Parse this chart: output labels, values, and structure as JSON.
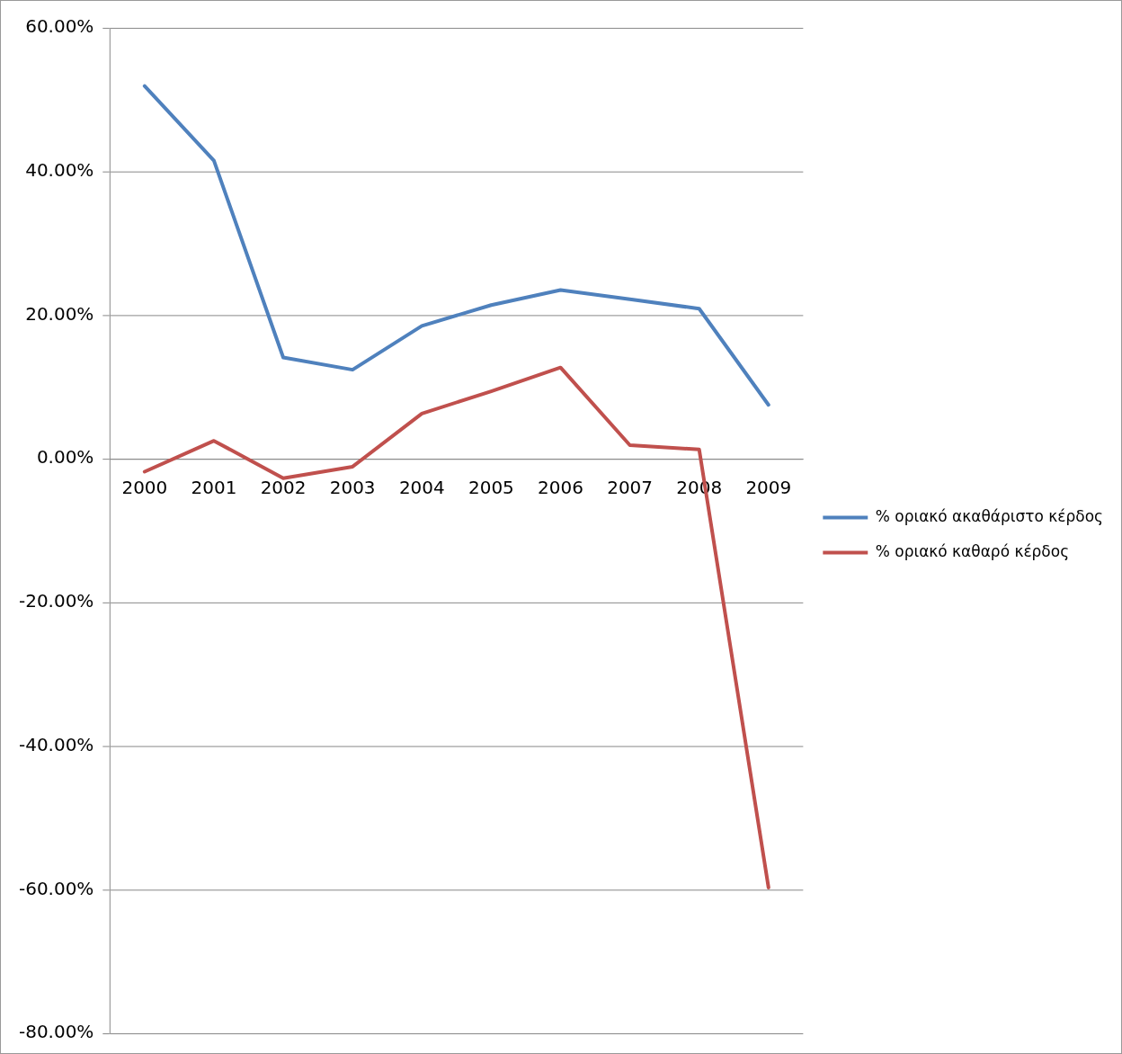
{
  "chart_data": {
    "type": "line",
    "categories": [
      "2000",
      "2001",
      "2002",
      "2003",
      "2004",
      "2005",
      "2006",
      "2007",
      "2008",
      "2009"
    ],
    "series": [
      {
        "name": "% οριακό ακαθάριστο κέρδος",
        "color": "#4f81bd",
        "values": [
          51.9,
          41.5,
          14.1,
          12.4,
          18.5,
          21.4,
          23.5,
          22.2,
          20.9,
          7.5
        ]
      },
      {
        "name": "% οριακό καθαρό κέρδος",
        "color": "#c0504d",
        "values": [
          -1.8,
          2.5,
          -2.7,
          -1.1,
          6.3,
          9.4,
          12.7,
          1.9,
          1.3,
          -59.7
        ]
      }
    ],
    "ylim": [
      -80,
      60
    ],
    "yticks": [
      {
        "value": -80,
        "label": "-80.00%"
      },
      {
        "value": -60,
        "label": "-60.00%"
      },
      {
        "value": -40,
        "label": "-40.00%"
      },
      {
        "value": -20,
        "label": "-20.00%"
      },
      {
        "value": 0,
        "label": "0.00%"
      },
      {
        "value": 20,
        "label": "20.00%"
      },
      {
        "value": 40,
        "label": "40.00%"
      },
      {
        "value": 60,
        "label": "60.00%"
      }
    ],
    "grid": "y",
    "legend": "right",
    "marker": "none",
    "line_style": "solid"
  }
}
